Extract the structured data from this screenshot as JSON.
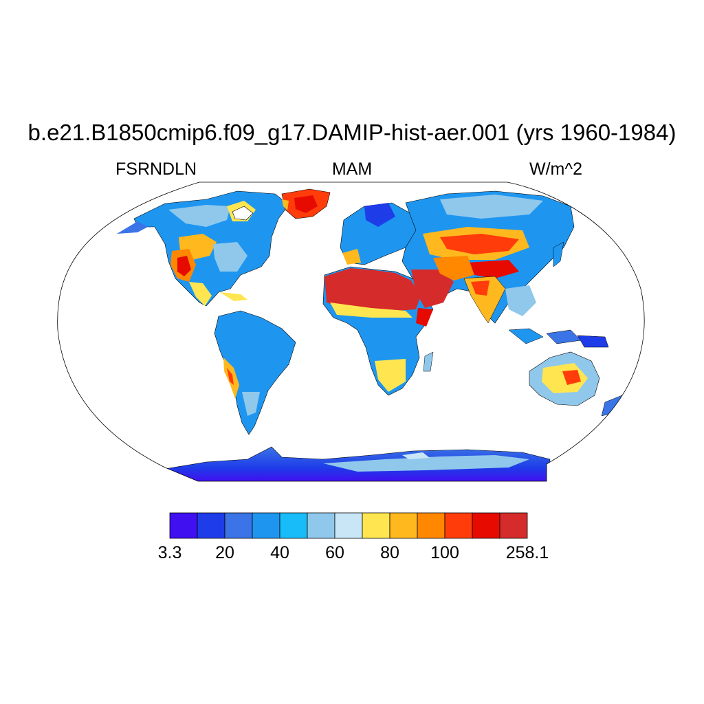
{
  "title": "b.e21.B1850cmip6.f09_g17.DAMIP-hist-aer.001 (yrs 1960-1984)",
  "left_subtitle": "FSRNDLN",
  "center_subtitle": "MAM",
  "right_subtitle": "W/m^2",
  "colorbar": {
    "colors": [
      "#4010f0",
      "#1e3ce8",
      "#3a74e6",
      "#1e96f0",
      "#18bcf8",
      "#90c8ec",
      "#c8e6f6",
      "#ffe650",
      "#ffb81e",
      "#ff8800",
      "#ff3c0a",
      "#e60a00",
      "#d52b2b"
    ],
    "labels": [
      "3.3",
      "20",
      "40",
      "60",
      "80",
      "100",
      "258.1"
    ]
  },
  "colors": {
    "ocean": "#ffffff",
    "outline": "#000000"
  }
}
